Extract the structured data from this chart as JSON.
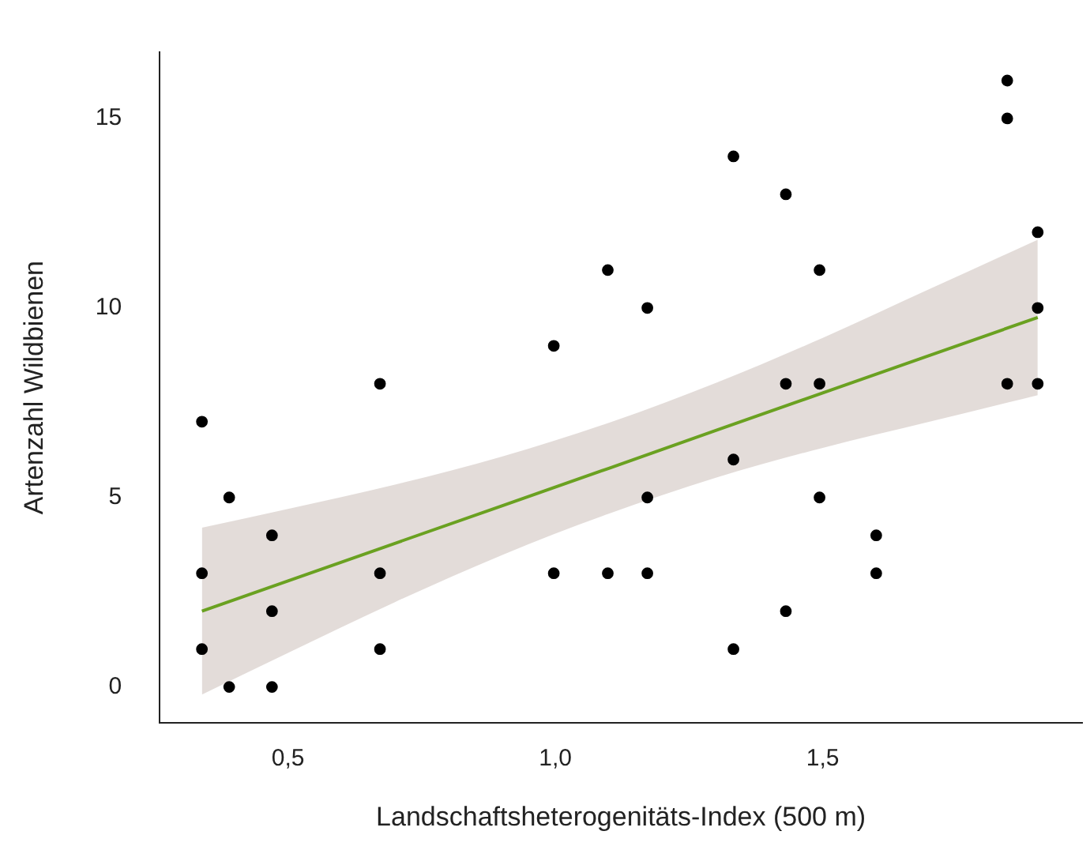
{
  "chart_data": {
    "type": "scatter",
    "xlabel": "Landschaftsheterogenitäts-Index (500 m)",
    "ylabel": "Artenzahl Wildbienen",
    "xlim": [
      0.26,
      1.985
    ],
    "ylim": [
      -0.95,
      16.75
    ],
    "xticks": [
      {
        "value": 0.5,
        "label": "0,5"
      },
      {
        "value": 1.0,
        "label": "1,0"
      },
      {
        "value": 1.5,
        "label": "1,5"
      }
    ],
    "yticks": [
      0,
      5,
      10,
      15
    ],
    "grid": false,
    "legend": false,
    "marker": "circle",
    "series": [
      {
        "type": "scatter",
        "color": "#000000",
        "x": [
          0.339,
          0.339,
          0.339,
          0.39,
          0.39,
          0.47,
          0.47,
          0.47,
          0.672,
          0.672,
          0.672,
          0.997,
          0.997,
          1.098,
          1.098,
          1.172,
          1.172,
          1.172,
          1.333,
          1.333,
          1.333,
          1.431,
          1.431,
          1.431,
          1.494,
          1.494,
          1.494,
          1.6,
          1.6,
          1.845,
          1.845,
          1.845,
          1.902,
          1.902,
          1.902
        ],
        "values": [
          7,
          3,
          1,
          5,
          0,
          4,
          2,
          0,
          8,
          3,
          1,
          9,
          3,
          11,
          3,
          10,
          5,
          3,
          14,
          6,
          1,
          13,
          8,
          2,
          11,
          8,
          5,
          4,
          3,
          16,
          15,
          8,
          12,
          10,
          8
        ]
      },
      {
        "type": "line",
        "color": "#6aa121",
        "line_style": "solid",
        "marker": "none",
        "x": [
          0.339,
          0.5,
          0.7,
          0.9,
          1.1,
          1.3,
          1.5,
          1.7,
          1.902
        ],
        "values": [
          2.0,
          2.8,
          3.79,
          4.78,
          5.77,
          6.77,
          7.76,
          8.75,
          9.75
        ],
        "lower": [
          -0.2,
          0.9,
          2.24,
          3.48,
          4.57,
          5.52,
          6.31,
          7.0,
          7.7
        ],
        "upper": [
          4.2,
          4.7,
          5.34,
          6.08,
          6.97,
          8.02,
          9.21,
          10.5,
          11.8
        ]
      }
    ]
  }
}
